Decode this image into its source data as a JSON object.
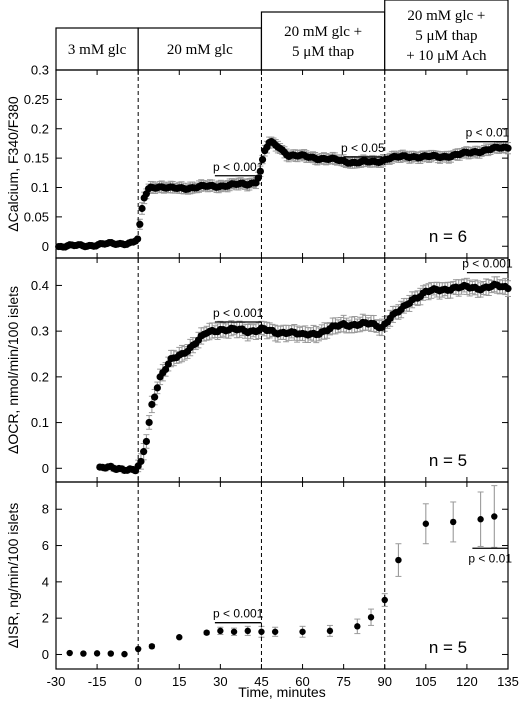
{
  "chart_data": {
    "type": "scatter",
    "x_label": "Time, minutes",
    "x_range": [
      -30,
      135
    ],
    "x_ticks": [
      -30,
      -15,
      0,
      15,
      30,
      45,
      60,
      75,
      90,
      105,
      120,
      135
    ],
    "condition_boundaries": [
      0,
      45,
      90
    ],
    "conditions": [
      {
        "lines": [
          "3 mM glc"
        ]
      },
      {
        "lines": [
          "20 mM glc"
        ]
      },
      {
        "lines": [
          "20 mM glc +",
          "5 μM thap"
        ]
      },
      {
        "lines": [
          "20 mM glc +",
          "5 μM thap",
          "+ 10 μM Ach"
        ]
      }
    ],
    "panels": [
      {
        "id": "calcium",
        "ylabel": "ΔCalcium, F340/F380",
        "y_range": [
          -0.02,
          0.3
        ],
        "y_ticks": [
          0,
          0.05,
          0.1,
          0.15,
          0.2,
          0.25,
          0.3
        ],
        "n_label": "n = 6",
        "error_bar_color": "#9a9a9a",
        "annotations": [
          {
            "text": "p < 0.001",
            "x1": 28,
            "x2": 45,
            "y": 0.12
          },
          {
            "text": "p < 0.05",
            "x1": 75,
            "x2": 89,
            "y": 0.152
          },
          {
            "text": "p < 0.01",
            "x1": 120,
            "x2": 135,
            "y": 0.178
          }
        ],
        "series_keypoints": [
          [
            -29,
            0
          ],
          [
            -20,
            0.001
          ],
          [
            -10,
            0.004
          ],
          [
            -2,
            0.006
          ],
          [
            0,
            0.012
          ],
          [
            1,
            0.05
          ],
          [
            2,
            0.08
          ],
          [
            4,
            0.1
          ],
          [
            7,
            0.102
          ],
          [
            12,
            0.098
          ],
          [
            20,
            0.1
          ],
          [
            30,
            0.103
          ],
          [
            40,
            0.106
          ],
          [
            43,
            0.11
          ],
          [
            44.5,
            0.125
          ],
          [
            46,
            0.16
          ],
          [
            48,
            0.177
          ],
          [
            51,
            0.17
          ],
          [
            55,
            0.155
          ],
          [
            60,
            0.153
          ],
          [
            70,
            0.148
          ],
          [
            78,
            0.143
          ],
          [
            86,
            0.143
          ],
          [
            89,
            0.146
          ],
          [
            91,
            0.15
          ],
          [
            100,
            0.153
          ],
          [
            110,
            0.152
          ],
          [
            120,
            0.158
          ],
          [
            128,
            0.165
          ],
          [
            135,
            0.168
          ]
        ],
        "spacing": 0.8,
        "error": 0.01
      },
      {
        "id": "ocr",
        "ylabel": "ΔOCR, nmol/min/100 islets",
        "y_range": [
          -0.03,
          0.46
        ],
        "y_ticks": [
          0,
          0.1,
          0.2,
          0.3,
          0.4
        ],
        "n_label": "n = 5",
        "error_bar_color": "#9a9a9a",
        "annotations": [
          {
            "text": "p < 0.001",
            "x1": 28,
            "x2": 45,
            "y": 0.32
          },
          {
            "text": "p < 0.001",
            "x1": 120,
            "x2": 135,
            "y": 0.428
          }
        ],
        "series_keypoints": [
          [
            -14,
            0.0
          ],
          [
            -5,
            0.0
          ],
          [
            -1,
            -0.005
          ],
          [
            1,
            0.01
          ],
          [
            3,
            0.06
          ],
          [
            5,
            0.14
          ],
          [
            8,
            0.2
          ],
          [
            12,
            0.235
          ],
          [
            16,
            0.25
          ],
          [
            20,
            0.27
          ],
          [
            25,
            0.295
          ],
          [
            30,
            0.305
          ],
          [
            40,
            0.3
          ],
          [
            45,
            0.305
          ],
          [
            50,
            0.295
          ],
          [
            55,
            0.3
          ],
          [
            60,
            0.29
          ],
          [
            68,
            0.3
          ],
          [
            75,
            0.315
          ],
          [
            85,
            0.315
          ],
          [
            89,
            0.31
          ],
          [
            92,
            0.33
          ],
          [
            96,
            0.345
          ],
          [
            100,
            0.37
          ],
          [
            105,
            0.385
          ],
          [
            115,
            0.395
          ],
          [
            125,
            0.395
          ],
          [
            130,
            0.398
          ],
          [
            135,
            0.395
          ]
        ],
        "spacing": 1.0,
        "error": 0.018
      },
      {
        "id": "isr",
        "ylabel": "ΔISR, ng/min/100 islets",
        "y_range": [
          -0.8,
          9.5
        ],
        "y_ticks": [
          0,
          2,
          4,
          6,
          8
        ],
        "n_label": "n = 5",
        "error_bar_color": "#9a9a9a",
        "annotations": [
          {
            "text": "p < 0.001",
            "x1": 28,
            "x2": 45,
            "y": 1.75
          },
          {
            "text": "p < 0.01",
            "x1": 122,
            "x2": 135,
            "y": 5.85,
            "label_below": true
          }
        ],
        "points": [
          {
            "x": -25,
            "y": 0.08,
            "e": 0
          },
          {
            "x": -20,
            "y": 0.05,
            "e": 0
          },
          {
            "x": -15,
            "y": 0.06,
            "e": 0
          },
          {
            "x": -10,
            "y": 0.05,
            "e": 0
          },
          {
            "x": -5,
            "y": 0.02,
            "e": 0
          },
          {
            "x": 0,
            "y": 0.3,
            "e": 0
          },
          {
            "x": 5,
            "y": 0.45,
            "e": 0.1
          },
          {
            "x": 15,
            "y": 0.95,
            "e": 0.05
          },
          {
            "x": 25,
            "y": 1.2,
            "e": 0.1
          },
          {
            "x": 30,
            "y": 1.3,
            "e": 0.2
          },
          {
            "x": 35,
            "y": 1.25,
            "e": 0.2
          },
          {
            "x": 40,
            "y": 1.3,
            "e": 0.25
          },
          {
            "x": 45,
            "y": 1.25,
            "e": 0.3
          },
          {
            "x": 50,
            "y": 1.25,
            "e": 0.25
          },
          {
            "x": 60,
            "y": 1.25,
            "e": 0.3
          },
          {
            "x": 70,
            "y": 1.3,
            "e": 0.3
          },
          {
            "x": 80,
            "y": 1.55,
            "e": 0.4
          },
          {
            "x": 85,
            "y": 2.05,
            "e": 0.45
          },
          {
            "x": 90,
            "y": 3.0,
            "e": 0.35
          },
          {
            "x": 95,
            "y": 5.2,
            "e": 0.9
          },
          {
            "x": 105,
            "y": 7.2,
            "e": 1.1
          },
          {
            "x": 115,
            "y": 7.3,
            "e": 1.1
          },
          {
            "x": 125,
            "y": 7.45,
            "e": 1.5
          },
          {
            "x": 130,
            "y": 7.6,
            "e": 1.7
          }
        ]
      }
    ]
  }
}
